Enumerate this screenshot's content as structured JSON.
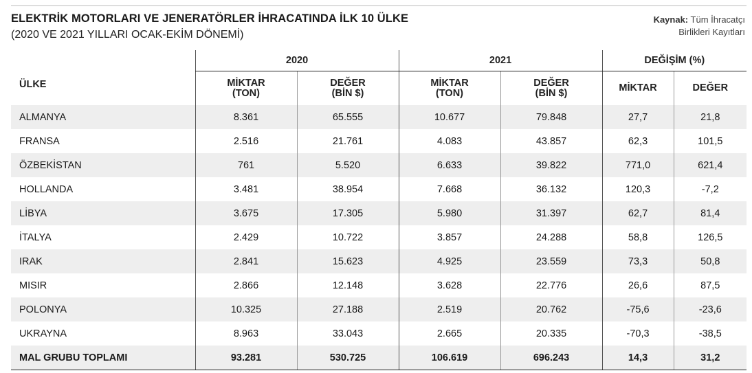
{
  "header": {
    "title": "ELEKTRİK MOTORLARI VE JENERATÖRLER İHRACATINDA İLK 10 ÜLKE",
    "subtitle": "(2020 VE 2021 YILLARI OCAK-EKİM DÖNEMİ)",
    "source_label": "Kaynak:",
    "source_line1": "Tüm İhracatçı",
    "source_line2": "Birlikleri Kayıtları"
  },
  "table": {
    "country_header": "ÜLKE",
    "group_2020": "2020",
    "group_2021": "2021",
    "group_change": "DEĞİŞİM (%)",
    "miktar_ton_l1": "MİKTAR",
    "miktar_ton_l2": "(TON)",
    "deger_bin_l1": "DEĞER",
    "deger_bin_l2": "(BİN $)",
    "change_miktar": "MİKTAR",
    "change_deger": "DEĞER",
    "rows": [
      {
        "country": "ALMANYA",
        "m2020": "8.361",
        "d2020": "65.555",
        "m2021": "10.677",
        "d2021": "79.848",
        "cm": "27,7",
        "cd": "21,8"
      },
      {
        "country": "FRANSA",
        "m2020": "2.516",
        "d2020": "21.761",
        "m2021": "4.083",
        "d2021": "43.857",
        "cm": "62,3",
        "cd": "101,5"
      },
      {
        "country": "ÖZBEKİSTAN",
        "m2020": "761",
        "d2020": "5.520",
        "m2021": "6.633",
        "d2021": "39.822",
        "cm": "771,0",
        "cd": "621,4"
      },
      {
        "country": "HOLLANDA",
        "m2020": "3.481",
        "d2020": "38.954",
        "m2021": "7.668",
        "d2021": "36.132",
        "cm": "120,3",
        "cd": "-7,2"
      },
      {
        "country": "LİBYA",
        "m2020": "3.675",
        "d2020": "17.305",
        "m2021": "5.980",
        "d2021": "31.397",
        "cm": "62,7",
        "cd": "81,4"
      },
      {
        "country": "İTALYA",
        "m2020": "2.429",
        "d2020": "10.722",
        "m2021": "3.857",
        "d2021": "24.288",
        "cm": "58,8",
        "cd": "126,5"
      },
      {
        "country": "IRAK",
        "m2020": "2.841",
        "d2020": "15.623",
        "m2021": "4.925",
        "d2021": "23.559",
        "cm": "73,3",
        "cd": "50,8"
      },
      {
        "country": "MISIR",
        "m2020": "2.866",
        "d2020": "12.148",
        "m2021": "3.628",
        "d2021": "22.776",
        "cm": "26,6",
        "cd": "87,5"
      },
      {
        "country": "POLONYA",
        "m2020": "10.325",
        "d2020": "27.188",
        "m2021": "2.519",
        "d2021": "20.762",
        "cm": "-75,6",
        "cd": "-23,6"
      },
      {
        "country": "UKRAYNA",
        "m2020": "8.963",
        "d2020": "33.043",
        "m2021": "2.665",
        "d2021": "20.335",
        "cm": "-70,3",
        "cd": "-38,5"
      }
    ],
    "total": {
      "country": "MAL GRUBU TOPLAMI",
      "m2020": "93.281",
      "d2020": "530.725",
      "m2021": "106.619",
      "d2021": "696.243",
      "cm": "14,3",
      "cd": "31,2"
    }
  }
}
